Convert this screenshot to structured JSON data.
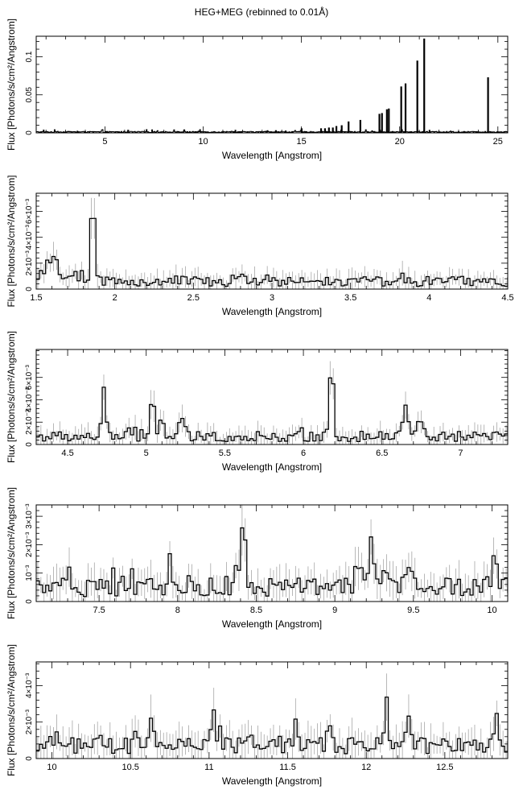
{
  "title": "HEG+MEG (rebinned to 0.01Å)",
  "chart_data": [
    {
      "type": "line",
      "xlabel": "Wavelength [Angstrom]",
      "ylabel": "Flux [Photons/s/cm²/Angstrom]",
      "xlim": [
        1.5,
        25.5
      ],
      "ylim": [
        0,
        0.127
      ],
      "xticks": [
        5,
        10,
        15,
        20,
        25
      ],
      "xtick_labels": [
        "5",
        "10",
        "15",
        "20",
        "25"
      ],
      "yticks": [
        0,
        0.05,
        0.1
      ],
      "ytick_labels": [
        "0",
        "0.05",
        "0.1"
      ],
      "baseline": 0.0012,
      "lines": [
        {
          "x": 6.18,
          "y": 0.004
        },
        {
          "x": 13.45,
          "y": 0.002
        },
        {
          "x": 13.7,
          "y": 0.0035
        },
        {
          "x": 14.2,
          "y": 0.003
        },
        {
          "x": 15.01,
          "y": 0.006
        },
        {
          "x": 15.26,
          "y": 0.002
        },
        {
          "x": 16.0,
          "y": 0.006
        },
        {
          "x": 16.2,
          "y": 0.006
        },
        {
          "x": 16.4,
          "y": 0.007
        },
        {
          "x": 16.6,
          "y": 0.007
        },
        {
          "x": 16.78,
          "y": 0.009
        },
        {
          "x": 17.05,
          "y": 0.01
        },
        {
          "x": 17.4,
          "y": 0.015
        },
        {
          "x": 18.0,
          "y": 0.017
        },
        {
          "x": 18.97,
          "y": 0.025
        },
        {
          "x": 19.1,
          "y": 0.026
        },
        {
          "x": 19.35,
          "y": 0.031
        },
        {
          "x": 19.45,
          "y": 0.032
        },
        {
          "x": 20.08,
          "y": 0.061
        },
        {
          "x": 20.3,
          "y": 0.065
        },
        {
          "x": 20.9,
          "y": 0.095
        },
        {
          "x": 21.25,
          "y": 0.124
        },
        {
          "x": 24.5,
          "y": 0.073
        }
      ]
    },
    {
      "type": "line",
      "xlabel": "Wavelength [Angstrom]",
      "ylabel": "Flux [Photons/s/cm²/Angstrom]",
      "xlim": [
        1.5,
        4.5
      ],
      "ylim": [
        0,
        0.0074
      ],
      "xticks": [
        1.5,
        2,
        2.5,
        3,
        3.5,
        4,
        4.5
      ],
      "xtick_labels": [
        "1.5",
        "2",
        "2.5",
        "3",
        "3.5",
        "4",
        "4.5"
      ],
      "yticks": [
        0,
        0.002,
        0.004,
        0.006
      ],
      "ytick_labels": [
        "0",
        "2×10⁻³",
        "4×10⁻³",
        "6×10⁻³"
      ],
      "continuum": 0.0006,
      "noise": 0.0004,
      "bin": 0.02,
      "lines": [
        {
          "x": 1.86,
          "y": 0.0067,
          "w": 0.012
        },
        {
          "x": 1.6,
          "y": 0.0016,
          "w": 0.03
        }
      ]
    },
    {
      "type": "line",
      "xlabel": "Wavelength [Angstrom]",
      "ylabel": "Flux [Photons/s/cm²/Angstrom]",
      "xlim": [
        4.3,
        7.3
      ],
      "ylim": [
        0,
        0.0085
      ],
      "xticks": [
        4.5,
        5,
        5.5,
        6,
        6.5,
        7
      ],
      "xtick_labels": [
        "4.5",
        "5",
        "5.5",
        "6",
        "6.5",
        "7"
      ],
      "yticks": [
        0,
        0.002,
        0.004,
        0.006
      ],
      "ytick_labels": [
        "0",
        "2×10⁻³",
        "4×10⁻³",
        "6×10⁻³"
      ],
      "continuum": 0.0007,
      "noise": 0.00045,
      "bin": 0.02,
      "lines": [
        {
          "x": 4.73,
          "y": 0.0045,
          "w": 0.012
        },
        {
          "x": 5.04,
          "y": 0.0038,
          "w": 0.012
        },
        {
          "x": 5.1,
          "y": 0.0018,
          "w": 0.015
        },
        {
          "x": 5.22,
          "y": 0.0015,
          "w": 0.015
        },
        {
          "x": 6.18,
          "y": 0.0072,
          "w": 0.012
        },
        {
          "x": 6.65,
          "y": 0.0024,
          "w": 0.02
        },
        {
          "x": 6.74,
          "y": 0.0018,
          "w": 0.015
        }
      ]
    },
    {
      "type": "line",
      "xlabel": "Wavelength [Angstrom]",
      "ylabel": "Flux [Photons/s/cm²/Angstrom]",
      "xlim": [
        7.1,
        10.1
      ],
      "ylim": [
        0,
        0.0034
      ],
      "xticks": [
        7.5,
        8,
        8.5,
        9,
        9.5,
        10
      ],
      "xtick_labels": [
        "7.5",
        "8",
        "8.5",
        "9",
        "9.5",
        "10"
      ],
      "yticks": [
        0,
        0.001,
        0.002,
        0.003
      ],
      "ytick_labels": [
        "0",
        "10⁻³",
        "2×10⁻³",
        "3×10⁻³"
      ],
      "continuum": 0.0005,
      "noise": 0.0003,
      "bin": 0.02,
      "lines": [
        {
          "x": 7.95,
          "y": 0.0009,
          "w": 0.015
        },
        {
          "x": 8.42,
          "y": 0.0026,
          "w": 0.012
        },
        {
          "x": 8.38,
          "y": 0.0009,
          "w": 0.01
        },
        {
          "x": 9.15,
          "y": 0.0008,
          "w": 0.02
        },
        {
          "x": 9.23,
          "y": 0.0016,
          "w": 0.015
        },
        {
          "x": 9.32,
          "y": 0.0007,
          "w": 0.02
        },
        {
          "x": 9.48,
          "y": 0.0006,
          "w": 0.02
        },
        {
          "x": 10.02,
          "y": 0.0015,
          "w": 0.012
        }
      ]
    },
    {
      "type": "line",
      "xlabel": "Wavelength [Angstrom]",
      "ylabel": "Flux [Photons/s/cm²/Angstrom]",
      "xlim": [
        9.9,
        12.9
      ],
      "ylim": [
        0,
        0.0053
      ],
      "xticks": [
        10,
        10.5,
        11,
        11.5,
        12,
        12.5
      ],
      "xtick_labels": [
        "10",
        "10.5",
        "11",
        "11.5",
        "12",
        "12.5"
      ],
      "yticks": [
        0,
        0.002,
        0.004
      ],
      "ytick_labels": [
        "0",
        "2×10⁻³",
        "4×10⁻³"
      ],
      "continuum": 0.0007,
      "noise": 0.0005,
      "bin": 0.02,
      "lines": [
        {
          "x": 10.03,
          "y": 0.0011,
          "w": 0.015
        },
        {
          "x": 10.63,
          "y": 0.0013,
          "w": 0.015
        },
        {
          "x": 11.03,
          "y": 0.0012,
          "w": 0.015
        },
        {
          "x": 11.25,
          "y": 0.0009,
          "w": 0.015
        },
        {
          "x": 11.55,
          "y": 0.0009,
          "w": 0.015
        },
        {
          "x": 11.77,
          "y": 0.0009,
          "w": 0.015
        },
        {
          "x": 12.13,
          "y": 0.0028,
          "w": 0.012
        },
        {
          "x": 12.27,
          "y": 0.0012,
          "w": 0.015
        },
        {
          "x": 12.83,
          "y": 0.002,
          "w": 0.012
        }
      ]
    }
  ]
}
